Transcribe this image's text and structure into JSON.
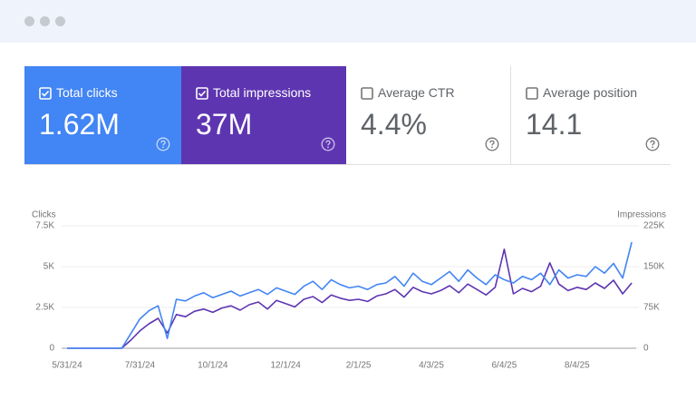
{
  "cards": [
    {
      "label": "Total clicks",
      "value": "1.62M",
      "selected": true,
      "color": "#4285f4"
    },
    {
      "label": "Total impressions",
      "value": "37M",
      "selected": true,
      "color": "#5e35b1"
    },
    {
      "label": "Average CTR",
      "value": "4.4%",
      "selected": false,
      "color": "#ffffff"
    },
    {
      "label": "Average position",
      "value": "14.1",
      "selected": false,
      "color": "#ffffff"
    }
  ],
  "chart_data": {
    "type": "line",
    "ylabel": "Clicks",
    "y2label": "Impressions",
    "categories": [
      "5/31/24",
      null,
      null,
      null,
      null,
      null,
      null,
      null,
      "7/31/24",
      null,
      null,
      null,
      null,
      null,
      null,
      null,
      "10/1/24",
      null,
      null,
      null,
      null,
      null,
      null,
      null,
      "12/1/24",
      null,
      null,
      null,
      null,
      null,
      null,
      null,
      "2/1/25",
      null,
      null,
      null,
      null,
      null,
      null,
      null,
      "4/3/25",
      null,
      null,
      null,
      null,
      null,
      null,
      null,
      "6/4/25",
      null,
      null,
      null,
      null,
      null,
      null,
      null,
      "8/4/25",
      null,
      null,
      null,
      null,
      null,
      null
    ],
    "series": [
      {
        "color": "#4285f4",
        "values": [
          0,
          0,
          0,
          0,
          0,
          0,
          0,
          900,
          1800,
          2300,
          2600,
          600,
          3000,
          2900,
          3200,
          3400,
          3100,
          3300,
          3500,
          3200,
          3400,
          3600,
          3300,
          3700,
          3500,
          3300,
          3800,
          4100,
          3600,
          4200,
          3900,
          3700,
          3800,
          3600,
          3900,
          4000,
          4400,
          3800,
          4600,
          4100,
          3900,
          4300,
          4700,
          4100,
          4800,
          4300,
          3900,
          4500,
          4200,
          4000,
          4400,
          4200,
          4600,
          3900,
          4800,
          4300,
          4500,
          4400,
          5000,
          4600,
          5200,
          4300,
          6500
        ]
      },
      {
        "color": "#5e35b1",
        "axis": "y2",
        "values": [
          0,
          0,
          0,
          0,
          0,
          0,
          0,
          15000,
          32000,
          45000,
          55000,
          28000,
          62000,
          58000,
          68000,
          72000,
          66000,
          74000,
          78000,
          70000,
          80000,
          85000,
          72000,
          88000,
          82000,
          76000,
          90000,
          95000,
          84000,
          98000,
          92000,
          88000,
          90000,
          86000,
          96000,
          100000,
          108000,
          94000,
          112000,
          104000,
          100000,
          106000,
          115000,
          102000,
          118000,
          108000,
          98000,
          112000,
          182000,
          100000,
          110000,
          104000,
          114000,
          157000,
          118000,
          106000,
          112000,
          108000,
          120000,
          110000,
          125000,
          100000,
          120000
        ]
      }
    ],
    "ylim": [
      0,
      7500
    ],
    "yticks": [
      0,
      {
        "value": 2500,
        "label": "2.5K"
      },
      {
        "value": 5000,
        "label": "5K"
      },
      {
        "value": 7500,
        "label": "7.5K"
      }
    ],
    "y2lim": [
      0,
      225000
    ],
    "y2ticks": [
      0,
      {
        "value": 75000,
        "label": "75K"
      },
      {
        "value": 150000,
        "label": "150K"
      },
      {
        "value": 225000,
        "label": "225K"
      }
    ],
    "grid": true
  }
}
